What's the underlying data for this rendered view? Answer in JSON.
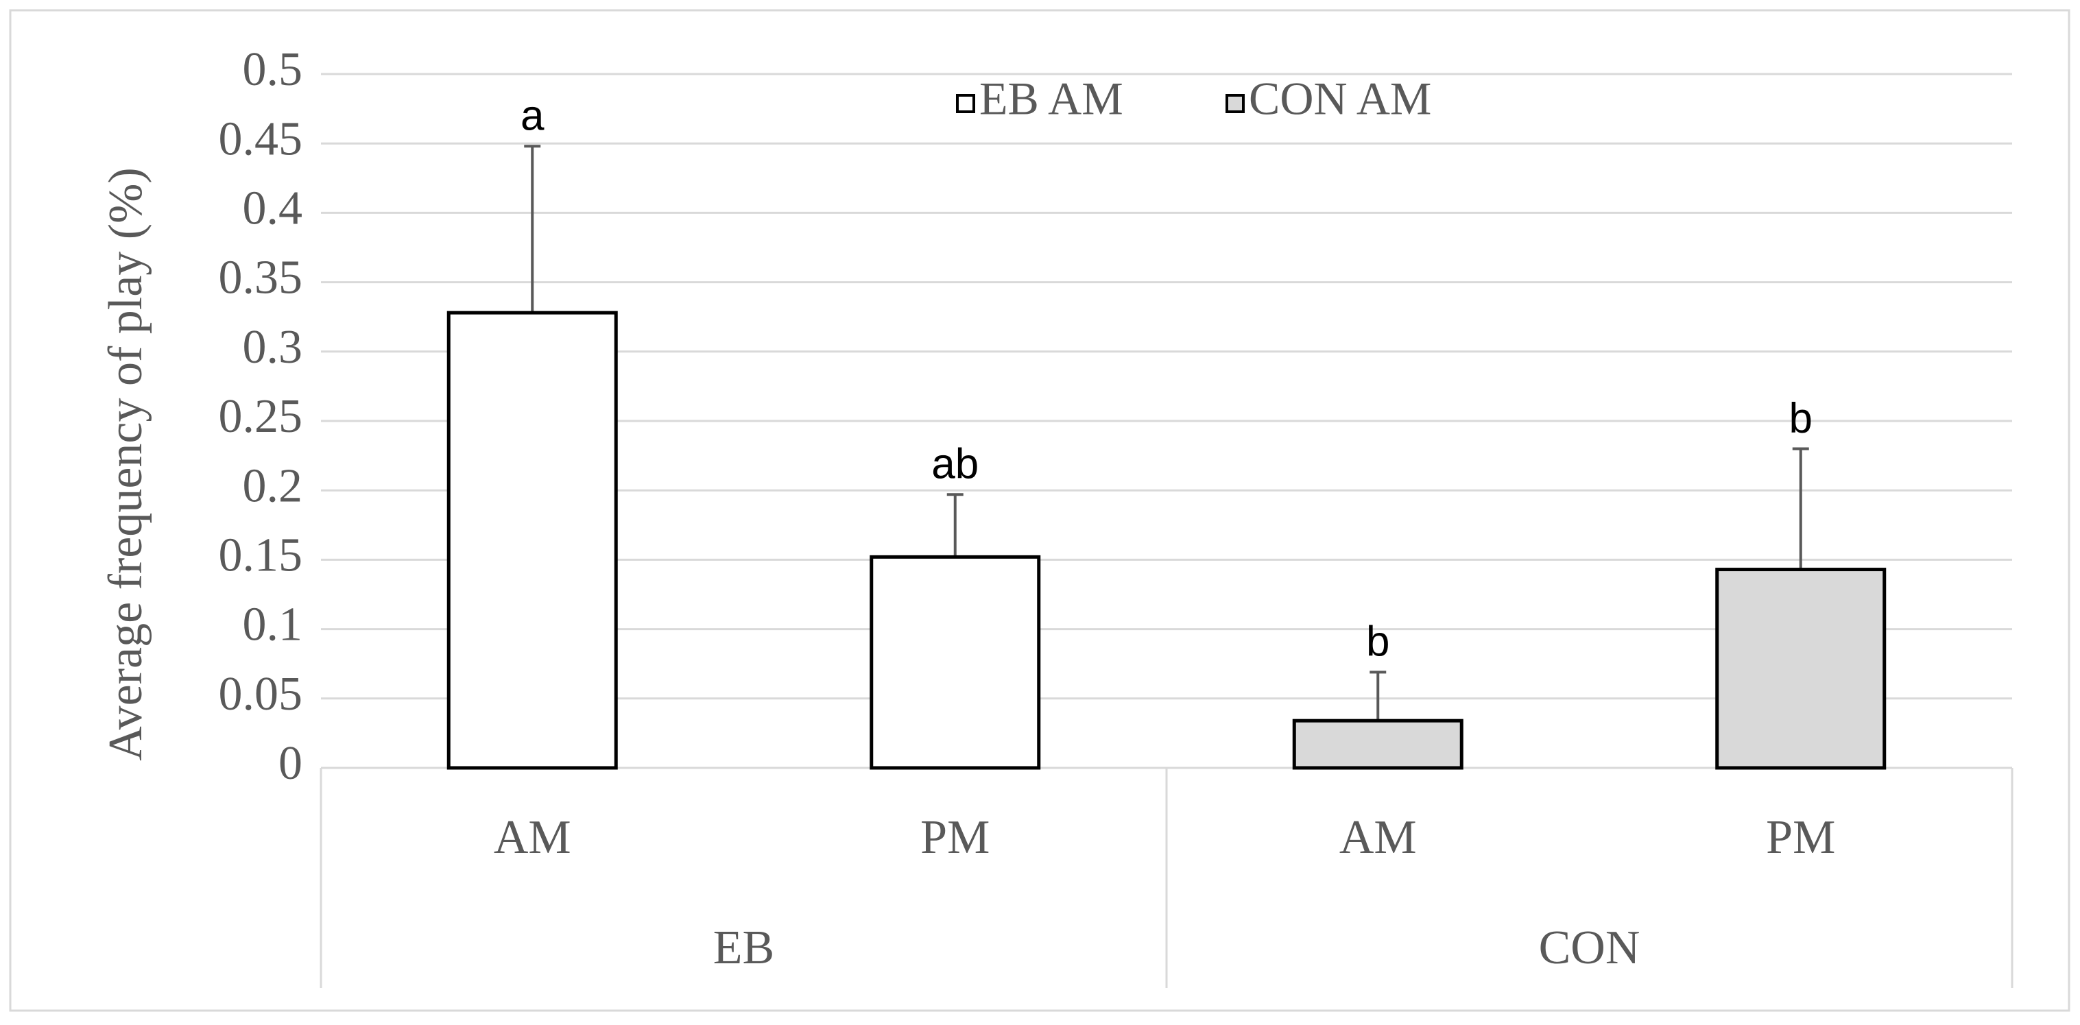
{
  "chart_data": {
    "type": "bar",
    "y_label": "Average  frequency of play (%)",
    "categories": [
      "AM",
      "PM",
      "AM",
      "PM"
    ],
    "groups": [
      {
        "label": "EB",
        "span": 2
      },
      {
        "label": "CON",
        "span": 2
      }
    ],
    "letters": [
      "a",
      "ab",
      "b",
      "b"
    ],
    "series": [
      {
        "name": "EB AM",
        "color": "#ffffff",
        "values": [
          0.328,
          0.152,
          null,
          null
        ],
        "errors": [
          0.12,
          0.045,
          null,
          null
        ]
      },
      {
        "name": "CON AM",
        "color": "#d9d9d9",
        "values": [
          null,
          null,
          0.034,
          0.143
        ],
        "errors": [
          null,
          null,
          0.035,
          0.087
        ]
      }
    ],
    "ylim": [
      0,
      0.5
    ],
    "yticks": [
      0,
      0.05,
      0.1,
      0.15,
      0.2,
      0.25,
      0.3,
      0.35,
      0.4,
      0.45,
      0.5
    ],
    "grid": true,
    "legend": "top"
  }
}
